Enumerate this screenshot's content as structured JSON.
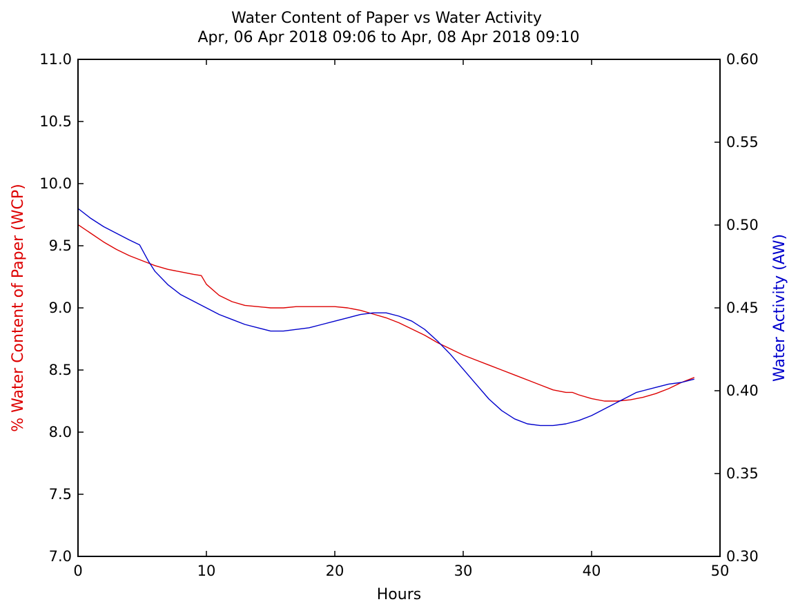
{
  "chart_data": {
    "type": "line",
    "title": "Water Content of Paper vs Water Activity",
    "subtitle": "Apr, 06 Apr 2018 09:06 to Apr, 08 Apr 2018 09:10",
    "xlabel": "Hours",
    "ylabel_left": "% Water Content of Paper (WCP)",
    "ylabel_right": "Water Activity (AW)",
    "xlim": [
      0,
      50
    ],
    "ylim_left": [
      7.0,
      11.0
    ],
    "ylim_right": [
      0.3,
      0.6
    ],
    "x_ticks": [
      0,
      10,
      20,
      30,
      40,
      50
    ],
    "y_ticks_left": [
      "7.0",
      "7.5",
      "8.0",
      "8.5",
      "9.0",
      "9.5",
      "10.0",
      "10.5",
      "11.0"
    ],
    "y_ticks_right": [
      "0.30",
      "0.35",
      "0.40",
      "0.45",
      "0.50",
      "0.55",
      "0.60"
    ],
    "grid": false,
    "colors": {
      "wcp": "#dd0000",
      "aw": "#0000cc",
      "axes": "#000000"
    },
    "series": [
      {
        "axis": "left",
        "color": "#dd0000",
        "x": [
          0,
          1,
          2,
          3,
          4,
          5,
          6,
          7,
          8,
          9,
          9.6,
          10,
          11,
          12,
          13,
          14,
          15,
          16,
          17,
          18,
          19,
          20,
          21,
          22,
          23,
          24,
          25,
          26,
          27,
          28,
          29,
          30,
          31,
          32,
          33,
          34,
          35,
          36,
          37,
          38,
          38.5,
          39,
          40,
          41,
          42,
          43,
          44,
          45,
          46,
          47,
          48
        ],
        "values": [
          9.67,
          9.6,
          9.53,
          9.47,
          9.42,
          9.38,
          9.34,
          9.31,
          9.29,
          9.27,
          9.26,
          9.19,
          9.1,
          9.05,
          9.02,
          9.01,
          9.0,
          9.0,
          9.01,
          9.01,
          9.01,
          9.01,
          9.0,
          8.98,
          8.95,
          8.92,
          8.88,
          8.83,
          8.78,
          8.72,
          8.67,
          8.62,
          8.58,
          8.54,
          8.5,
          8.46,
          8.42,
          8.38,
          8.34,
          8.32,
          8.32,
          8.3,
          8.27,
          8.25,
          8.25,
          8.26,
          8.28,
          8.31,
          8.35,
          8.4,
          8.44
        ]
      },
      {
        "axis": "right",
        "color": "#0000cc",
        "x": [
          0,
          1,
          2,
          3,
          4,
          4.8,
          5.5,
          6,
          7,
          8,
          9,
          10,
          11,
          12,
          13,
          14,
          15,
          16,
          17,
          18,
          19,
          20,
          21,
          22,
          23,
          24,
          25,
          26,
          27,
          28,
          29,
          30,
          31,
          32,
          33,
          34,
          35,
          36,
          37,
          38,
          39,
          40,
          41,
          42,
          43,
          43.5,
          44,
          45,
          46,
          47,
          48
        ],
        "values": [
          0.51,
          0.504,
          0.499,
          0.495,
          0.491,
          0.488,
          0.478,
          0.472,
          0.464,
          0.458,
          0.454,
          0.45,
          0.446,
          0.443,
          0.44,
          0.438,
          0.436,
          0.436,
          0.437,
          0.438,
          0.44,
          0.442,
          0.444,
          0.446,
          0.447,
          0.447,
          0.445,
          0.442,
          0.437,
          0.43,
          0.422,
          0.413,
          0.404,
          0.395,
          0.388,
          0.383,
          0.38,
          0.379,
          0.379,
          0.38,
          0.382,
          0.385,
          0.389,
          0.393,
          0.397,
          0.399,
          0.4,
          0.402,
          0.404,
          0.405,
          0.407
        ]
      }
    ]
  }
}
